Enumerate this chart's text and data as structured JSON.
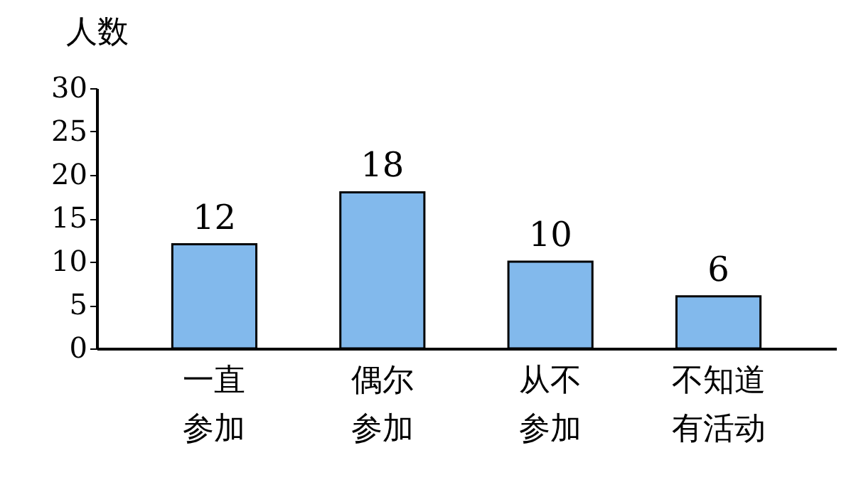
{
  "chart_data": {
    "type": "bar",
    "ylabel": "人数",
    "categories": [
      "一直参加",
      "偶尔参加",
      "从不参加",
      "不知道有活动"
    ],
    "values": [
      12,
      18,
      10,
      6
    ],
    "color": "#82b9ec",
    "ylim": [
      0,
      30
    ],
    "yticks": [
      0,
      5,
      10,
      15,
      20,
      25,
      30
    ],
    "grid": false,
    "data_labels": true
  }
}
